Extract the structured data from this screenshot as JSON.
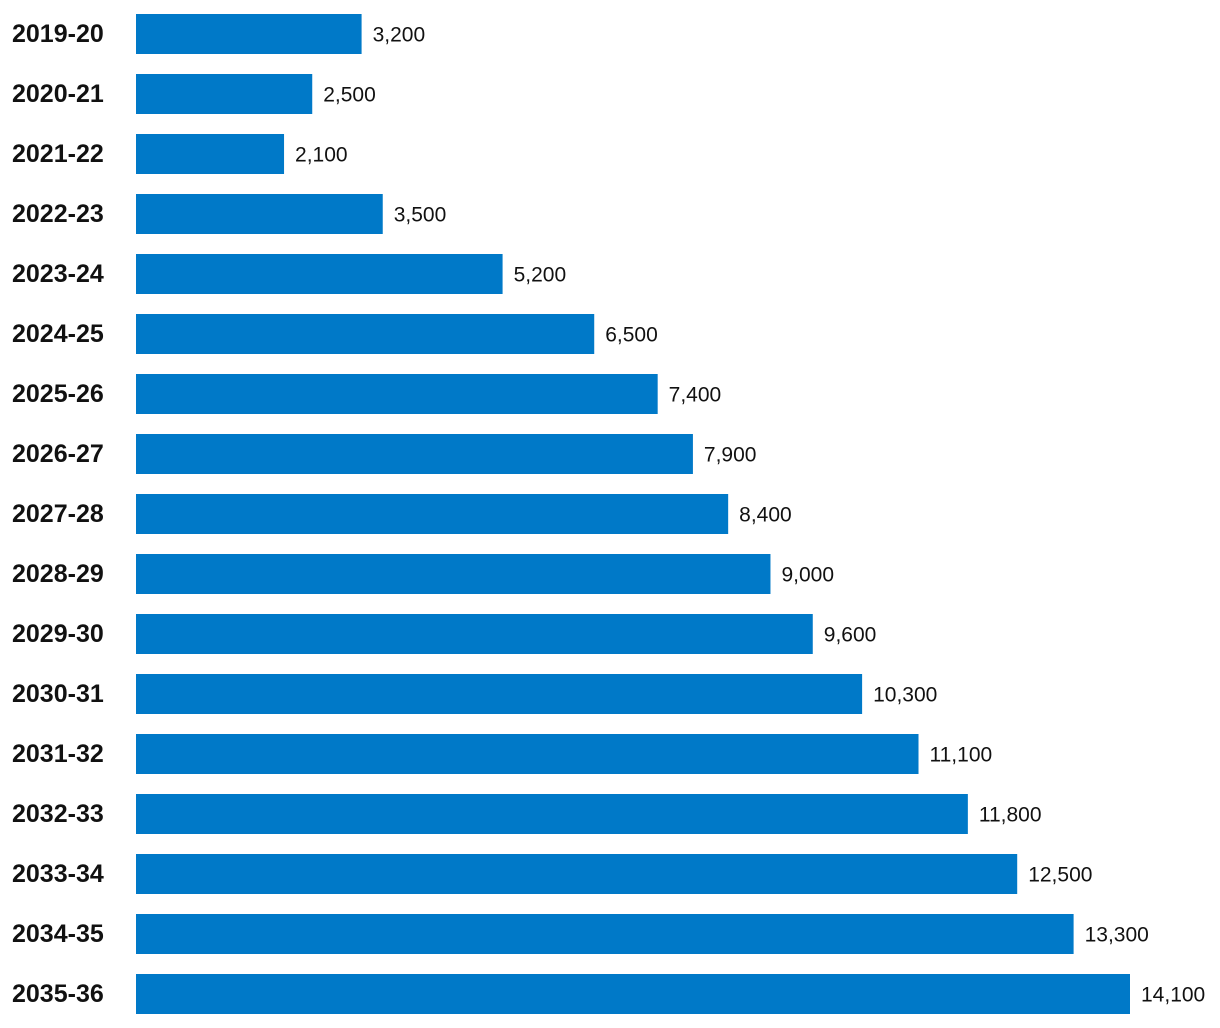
{
  "chart_data": {
    "type": "bar",
    "orientation": "horizontal",
    "title": "",
    "xlabel": "",
    "ylabel": "",
    "grid": false,
    "legend": "none",
    "xlim": [
      0,
      14100
    ],
    "bar_color": "#0079C8",
    "categories": [
      "2019-20",
      "2020-21",
      "2021-22",
      "2022-23",
      "2023-24",
      "2024-25",
      "2025-26",
      "2026-27",
      "2027-28",
      "2028-29",
      "2029-30",
      "2030-31",
      "2031-32",
      "2032-33",
      "2033-34",
      "2034-35",
      "2035-36"
    ],
    "values": [
      3200,
      2500,
      2100,
      3500,
      5200,
      6500,
      7400,
      7900,
      8400,
      9000,
      9600,
      10300,
      11100,
      11800,
      12500,
      13300,
      14100
    ],
    "value_labels": [
      "3,200",
      "2,500",
      "2,100",
      "3,500",
      "5,200",
      "6,500",
      "7,400",
      "7,900",
      "8,400",
      "9,000",
      "9,600",
      "10,300",
      "11,100",
      "11,800",
      "12,500",
      "13,300",
      "14,100"
    ]
  }
}
